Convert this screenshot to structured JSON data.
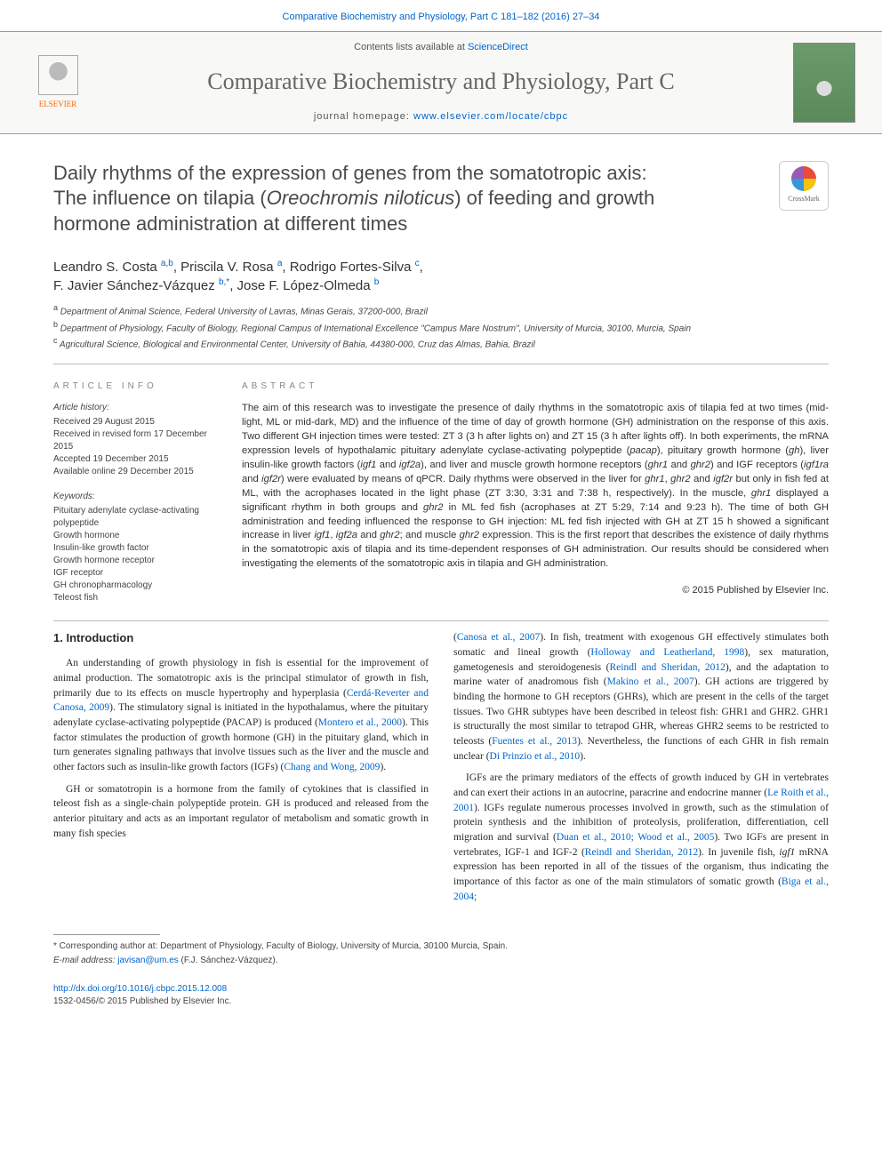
{
  "top_link": "Comparative Biochemistry and Physiology, Part C 181–182 (2016) 27–34",
  "banner": {
    "contents_prefix": "Contents lists available at ",
    "contents_link": "ScienceDirect",
    "journal_name": "Comparative Biochemistry and Physiology, Part C",
    "homepage_prefix": "journal homepage: ",
    "homepage_link": "www.elsevier.com/locate/cbpc",
    "publisher": "ELSEVIER"
  },
  "article": {
    "title_line1": "Daily rhythms of the expression of genes from the somatotropic axis:",
    "title_line2_pre": "The influence on tilapia (",
    "title_species": "Oreochromis niloticus",
    "title_line2_post": ") of feeding and growth",
    "title_line3": "hormone administration at different times",
    "crossmark": "CrossMark"
  },
  "authors": {
    "list": "Leandro S. Costa a,b, Priscila V. Rosa a, Rodrigo Fortes-Silva c, F. Javier Sánchez-Vázquez b,*, Jose F. López-Olmeda b",
    "a1_name": "Leandro S. Costa ",
    "a1_sup": "a,b",
    "a2_name": ", Priscila V. Rosa ",
    "a2_sup": "a",
    "a3_name": ", Rodrigo Fortes-Silva ",
    "a3_sup": "c",
    "a4_name": "F. Javier Sánchez-Vázquez ",
    "a4_sup": "b,",
    "a4_star": "*",
    "a5_name": ", Jose F. López-Olmeda ",
    "a5_sup": "b"
  },
  "affiliations": {
    "a": "Department of Animal Science, Federal University of Lavras, Minas Gerais, 37200-000, Brazil",
    "b": "Department of Physiology, Faculty of Biology, Regional Campus of International Excellence \"Campus Mare Nostrum\", University of Murcia, 30100, Murcia, Spain",
    "c": "Agricultural Science, Biological and Environmental Center, University of Bahia, 44380-000, Cruz das Almas, Bahia, Brazil"
  },
  "info": {
    "section_label": "article info",
    "history_head": "Article history:",
    "received": "Received 29 August 2015",
    "revised": "Received in revised form 17 December 2015",
    "accepted": "Accepted 19 December 2015",
    "online": "Available online 29 December 2015",
    "keywords_head": "Keywords:",
    "kw1": "Pituitary adenylate cyclase-activating polypeptide",
    "kw2": "Growth hormone",
    "kw3": "Insulin-like growth factor",
    "kw4": "Growth hormone receptor",
    "kw5": "IGF receptor",
    "kw6": "GH chronopharmacology",
    "kw7": "Teleost fish"
  },
  "abstract": {
    "label": "abstract",
    "text_1": "The aim of this research was to investigate the presence of daily rhythms in the somatotropic axis of tilapia fed at two times (mid-light, ML or mid-dark, MD) and the influence of the time of day of growth hormone (GH) administration on the response of this axis. Two different GH injection times were tested: ZT 3 (3 h after lights on) and ZT 15 (3 h after lights off). In both experiments, the mRNA expression levels of hypothalamic pituitary adenylate cyclase-activating polypeptide (",
    "g_pacap": "pacap",
    "text_2": "), pituitary growth hormone (",
    "g_gh": "gh",
    "text_3": "), liver insulin-like growth factors (",
    "g_igf1": "igf1",
    "text_4": " and ",
    "g_igf2a": "igf2a",
    "text_5": "), and liver and muscle growth hormone receptors (",
    "g_ghr1": "ghr1",
    "text_6": " and ",
    "g_ghr2": "ghr2",
    "text_7": ") and IGF receptors (",
    "g_igf1ra": "igf1ra",
    "text_8": " and ",
    "g_igf2r": "igf2r",
    "text_9": ") were evaluated by means of qPCR. Daily rhythms were observed in the liver for ",
    "g_ghr1b": "ghr1",
    "text_10": ", ",
    "g_ghr2b": "ghr2",
    "text_11": " and ",
    "g_igf2rb": "igf2r",
    "text_12": " but only in fish fed at ML, with the acrophases located in the light phase (ZT 3:30, 3:31 and 7:38 h, respectively). In the muscle, ",
    "g_ghr1c": "ghr1",
    "text_13": " displayed a significant rhythm in both groups and ",
    "g_ghr2c": "ghr2",
    "text_14": " in ML fed fish (acrophases at ZT 5:29, 7:14 and 9:23 h). The time of both GH administration and feeding influenced the response to GH injection: ML fed fish injected with GH at ZT 15 h showed a significant increase in liver ",
    "g_igf1b": "igf1",
    "text_15": ", ",
    "g_igf2ab": "igf2a",
    "text_16": " and ",
    "g_ghr2d": "ghr2",
    "text_17": "; and muscle ",
    "g_ghr2e": "ghr2",
    "text_18": " expression. This is the first report that describes the existence of daily rhythms in the somatotropic axis of tilapia and its time-dependent responses of GH administration. Our results should be considered when investigating the elements of the somatotropic axis in tilapia and GH administration.",
    "copyright": "© 2015 Published by Elsevier Inc."
  },
  "body": {
    "intro_heading": "1. Introduction",
    "p1_a": "An understanding of growth physiology in fish is essential for the improvement of animal production. The somatotropic axis is the principal stimulator of growth in fish, primarily due to its effects on muscle hypertrophy and hyperplasia (",
    "p1_ref1": "Cerdá-Reverter and Canosa, 2009",
    "p1_b": "). The stimulatory signal is initiated in the hypothalamus, where the pituitary adenylate cyclase-activating polypeptide (PACAP) is produced (",
    "p1_ref2": "Montero et al., 2000",
    "p1_c": "). This factor stimulates the production of growth hormone (GH) in the pituitary gland, which in turn generates signaling pathways that involve tissues such as the liver and the muscle and other factors such as insulin-like growth factors (IGFs) (",
    "p1_ref3": "Chang and Wong, 2009",
    "p1_d": ").",
    "p2_a": "GH or somatotropin is a hormone from the family of cytokines that is classified in teleost fish as a single-chain polypeptide protein. GH is produced and released from the anterior pituitary and acts as an important regulator of metabolism and somatic growth in many fish species",
    "p3_a": "(",
    "p3_ref1": "Canosa et al., 2007",
    "p3_b": "). In fish, treatment with exogenous GH effectively stimulates both somatic and lineal growth (",
    "p3_ref2": "Holloway and Leatherland, 1998",
    "p3_c": "), sex maturation, gametogenesis and steroidogenesis (",
    "p3_ref3": "Reindl and Sheridan, 2012",
    "p3_d": "), and the adaptation to marine water of anadromous fish (",
    "p3_ref4": "Makino et al., 2007",
    "p3_e": "). GH actions are triggered by binding the hormone to GH receptors (GHRs), which are present in the cells of the target tissues. Two GHR subtypes have been described in teleost fish: GHR1 and GHR2. GHR1 is structurally the most similar to tetrapod GHR, whereas GHR2 seems to be restricted to teleosts (",
    "p3_ref5": "Fuentes et al., 2013",
    "p3_f": "). Nevertheless, the functions of each GHR in fish remain unclear (",
    "p3_ref6": "Di Prinzio et al., 2010",
    "p3_g": ").",
    "p4_a": "IGFs are the primary mediators of the effects of growth induced by GH in vertebrates and can exert their actions in an autocrine, paracrine and endocrine manner (",
    "p4_ref1": "Le Roith et al., 2001",
    "p4_b": "). IGFs regulate numerous processes involved in growth, such as the stimulation of protein synthesis and the inhibition of proteolysis, proliferation, differentiation, cell migration and survival (",
    "p4_ref2": "Duan et al., 2010; Wood et al., 2005",
    "p4_c": "). Two IGFs are present in vertebrates, IGF-1 and IGF-2 (",
    "p4_ref3": "Reindl and Sheridan, 2012",
    "p4_d": "). In juvenile fish, ",
    "p4_gene": "igf1",
    "p4_e": " mRNA expression has been reported in all of the tissues of the organism, thus indicating the importance of this factor as one of the main stimulators of somatic growth (",
    "p4_ref4": "Biga et al., 2004;"
  },
  "footer": {
    "corr_label": "* Corresponding author at: Department of Physiology, Faculty of Biology, University of Murcia, 30100 Murcia, Spain.",
    "email_label": "E-mail address: ",
    "email": "javisan@um.es",
    "email_suffix": " (F.J. Sánchez-Vázquez).",
    "doi": "http://dx.doi.org/10.1016/j.cbpc.2015.12.008",
    "issn": "1532-0456/© 2015 Published by Elsevier Inc."
  }
}
